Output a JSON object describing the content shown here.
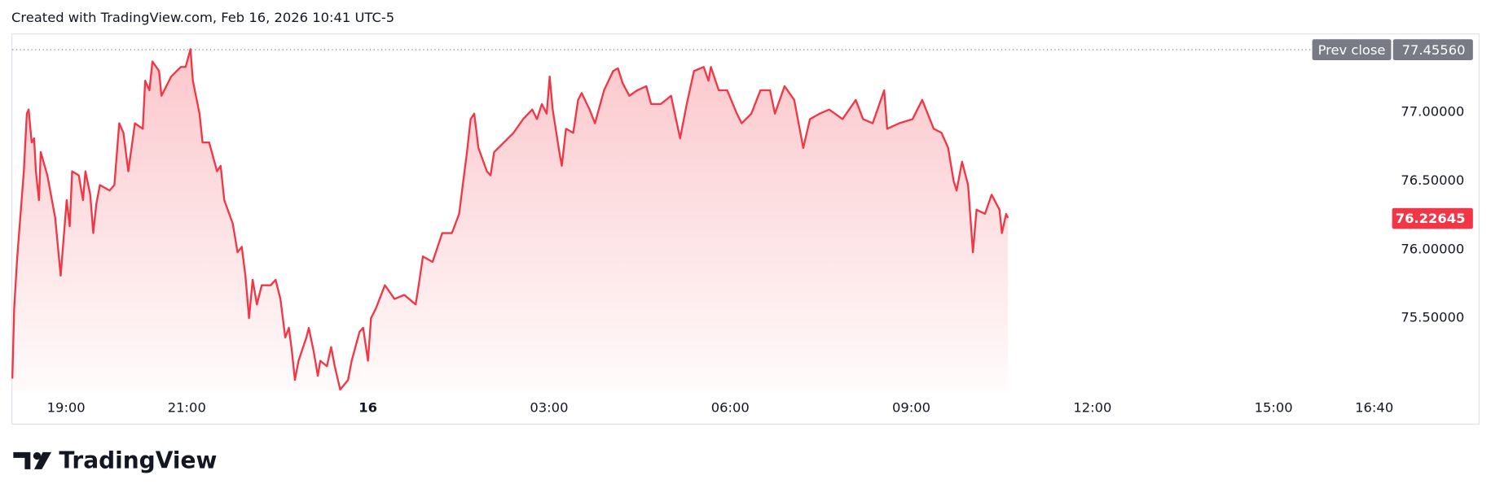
{
  "credit": "Created with TradingView.com, Feb 16, 2026 10:41 UTC-5",
  "branding": "TradingView",
  "chart_data": {
    "type": "area",
    "color": "#f23645",
    "x": [
      -5.89,
      -5.86,
      -5.81,
      -5.7,
      -5.65,
      -5.62,
      -5.57,
      -5.53,
      -5.5,
      -5.45,
      -5.42,
      -5.31,
      -5.18,
      -5.09,
      -4.99,
      -4.94,
      -4.9,
      -4.79,
      -4.72,
      -4.68,
      -4.6,
      -4.55,
      -4.5,
      -4.44,
      -4.28,
      -4.2,
      -4.12,
      -4.05,
      -3.97,
      -3.86,
      -3.73,
      -3.69,
      -3.62,
      -3.57,
      -3.46,
      -3.42,
      -3.26,
      -3.1,
      -3.02,
      -2.94,
      -2.9,
      -2.79,
      -2.74,
      -2.63,
      -2.5,
      -2.44,
      -2.38,
      -2.24,
      -2.16,
      -2.09,
      -2.03,
      -1.97,
      -1.91,
      -1.84,
      -1.76,
      -1.61,
      -1.53,
      -1.45,
      -1.37,
      -1.31,
      -1.26,
      -1.21,
      -1.15,
      -1.02,
      -0.98,
      -0.9,
      -0.83,
      -0.79,
      -0.68,
      -0.61,
      -0.55,
      -0.46,
      -0.33,
      -0.27,
      -0.14,
      -0.08,
      0.0,
      0.05,
      0.13,
      0.28,
      0.44,
      0.6,
      0.79,
      0.83,
      0.91,
      1.07,
      1.23,
      1.39,
      1.51,
      1.57,
      1.64,
      1.7,
      1.76,
      1.83,
      1.97,
      2.03,
      2.09,
      2.25,
      2.41,
      2.57,
      2.72,
      2.8,
      2.88,
      2.96,
      3.01,
      3.06,
      3.17,
      3.21,
      3.28,
      3.4,
      3.48,
      3.54,
      3.67,
      3.76,
      3.91,
      4.06,
      4.14,
      4.22,
      4.33,
      4.46,
      4.61,
      4.69,
      4.85,
      5.02,
      5.17,
      5.28,
      5.4,
      5.56,
      5.64,
      5.68,
      5.81,
      5.95,
      6.11,
      6.19,
      6.35,
      6.5,
      6.66,
      6.74,
      6.9,
      7.06,
      7.21,
      7.32,
      7.48,
      7.64,
      7.86,
      8.08,
      8.2,
      8.36,
      8.55,
      8.6,
      8.8,
      9.02,
      9.18,
      9.37,
      9.5,
      9.61,
      9.7,
      9.75,
      9.84,
      9.94,
      10.02,
      10.08,
      10.22,
      10.33,
      10.46,
      10.5,
      10.57,
      10.6
    ],
    "values": [
      75.06,
      75.57,
      75.94,
      76.57,
      76.99,
      77.02,
      76.78,
      76.81,
      76.57,
      76.36,
      76.71,
      76.54,
      76.23,
      75.81,
      76.36,
      76.17,
      76.57,
      76.54,
      76.36,
      76.57,
      76.4,
      76.12,
      76.33,
      76.47,
      76.43,
      76.47,
      76.92,
      76.85,
      76.57,
      76.92,
      76.88,
      77.23,
      77.16,
      77.37,
      77.3,
      77.12,
      77.26,
      77.33,
      77.33,
      77.46,
      77.23,
      76.99,
      76.78,
      76.78,
      76.57,
      76.61,
      76.36,
      76.19,
      75.98,
      76.02,
      75.81,
      75.5,
      75.78,
      75.6,
      75.74,
      75.74,
      75.78,
      75.64,
      75.36,
      75.43,
      75.26,
      75.05,
      75.19,
      75.36,
      75.43,
      75.26,
      75.08,
      75.19,
      75.15,
      75.29,
      75.15,
      74.98,
      75.05,
      75.19,
      75.4,
      75.43,
      75.19,
      75.5,
      75.57,
      75.74,
      75.64,
      75.67,
      75.6,
      75.71,
      75.95,
      75.91,
      76.12,
      76.12,
      76.26,
      76.47,
      76.71,
      76.95,
      76.99,
      76.74,
      76.57,
      76.54,
      76.71,
      76.78,
      76.85,
      76.95,
      77.02,
      76.95,
      77.06,
      76.99,
      77.26,
      77.02,
      76.71,
      76.61,
      76.88,
      76.85,
      77.09,
      77.14,
      77.02,
      76.92,
      77.16,
      77.3,
      77.32,
      77.21,
      77.12,
      77.16,
      77.19,
      77.06,
      77.06,
      77.12,
      76.81,
      77.06,
      77.3,
      77.33,
      77.23,
      77.33,
      77.16,
      77.16,
      76.99,
      76.92,
      76.99,
      77.16,
      77.16,
      76.99,
      77.19,
      77.09,
      76.74,
      76.95,
      76.99,
      77.02,
      76.95,
      77.09,
      76.95,
      76.92,
      77.16,
      76.88,
      76.92,
      76.95,
      77.09,
      76.88,
      76.85,
      76.74,
      76.5,
      76.43,
      76.64,
      76.47,
      75.98,
      76.29,
      76.26,
      76.4,
      76.29,
      76.12,
      76.26,
      76.23
    ],
    "xlim": [
      -5.89,
      16.9
    ],
    "xticks": [
      {
        "value": -5,
        "label": "19:00"
      },
      {
        "value": -3,
        "label": "21:00"
      },
      {
        "value": 0,
        "label": "16"
      },
      {
        "value": 3,
        "label": "03:00"
      },
      {
        "value": 6,
        "label": "06:00"
      },
      {
        "value": 9,
        "label": "09:00"
      },
      {
        "value": 12,
        "label": "12:00"
      },
      {
        "value": 15,
        "label": "15:00"
      },
      {
        "value": 16.667,
        "label": "16:40"
      }
    ],
    "ylim": [
      74.967,
      77.567
    ],
    "yticks": [
      {
        "value": 75.5,
        "label": "75.50000"
      },
      {
        "value": 76,
        "label": "76.00000"
      },
      {
        "value": 76.5,
        "label": "76.50000"
      },
      {
        "value": 77,
        "label": "77.00000"
      }
    ],
    "prev_close": {
      "name": "Prev close",
      "value": 77.4556,
      "label": "77.45560",
      "color": "#787b86"
    },
    "last_price": 76.22645
  }
}
